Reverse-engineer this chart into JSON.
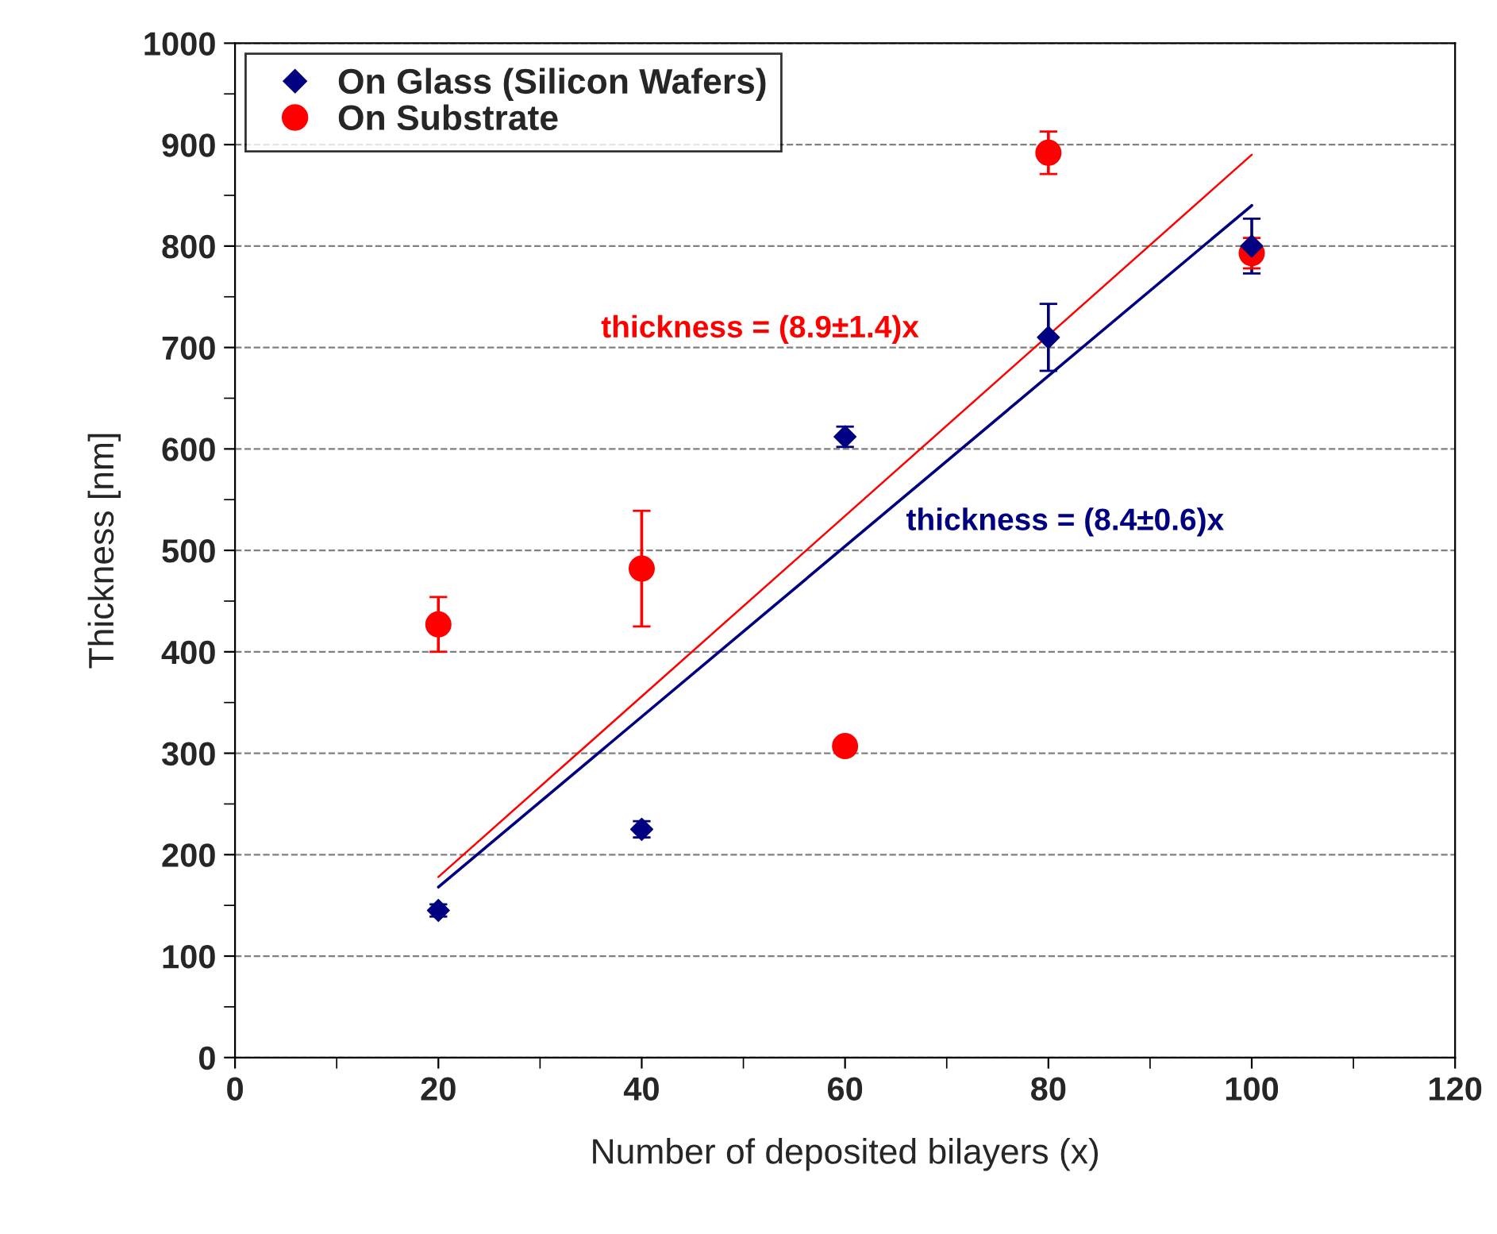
{
  "chart_data": {
    "type": "scatter",
    "xlabel": "Number of deposited bilayers (x)",
    "ylabel": "Thickness [nm]",
    "xlim": [
      0,
      120
    ],
    "xticks": [
      0,
      20,
      40,
      60,
      80,
      100,
      120
    ],
    "ylim": [
      0,
      1000
    ],
    "yticks": [
      0,
      100,
      200,
      300,
      400,
      500,
      600,
      700,
      800,
      900,
      1000
    ],
    "grid": "y",
    "legend": "top left",
    "series": [
      {
        "name": "On Glass (Silicon Wafers)",
        "color": "#000080",
        "marker": "diamond",
        "x": [
          20,
          40,
          60,
          80,
          100
        ],
        "values": [
          145,
          225,
          612,
          710,
          800
        ],
        "errors": [
          6,
          8,
          10,
          33,
          27
        ]
      },
      {
        "name": "On Substrate",
        "color": "#ff0000",
        "marker": "circle",
        "x": [
          20,
          40,
          60,
          80,
          100
        ],
        "values": [
          427,
          482,
          307,
          892,
          793
        ],
        "errors": [
          27,
          57,
          7,
          21,
          15
        ]
      },
      {
        "type": "line",
        "name": "thickness = (8.9±1.4)x",
        "color": "#ff0000",
        "x": [
          20,
          100
        ],
        "values": [
          178,
          890
        ]
      },
      {
        "type": "line",
        "name": "thickness = (8.4±0.6)x",
        "color": "#000080",
        "x": [
          20,
          100
        ],
        "values": [
          168,
          840
        ]
      }
    ]
  }
}
